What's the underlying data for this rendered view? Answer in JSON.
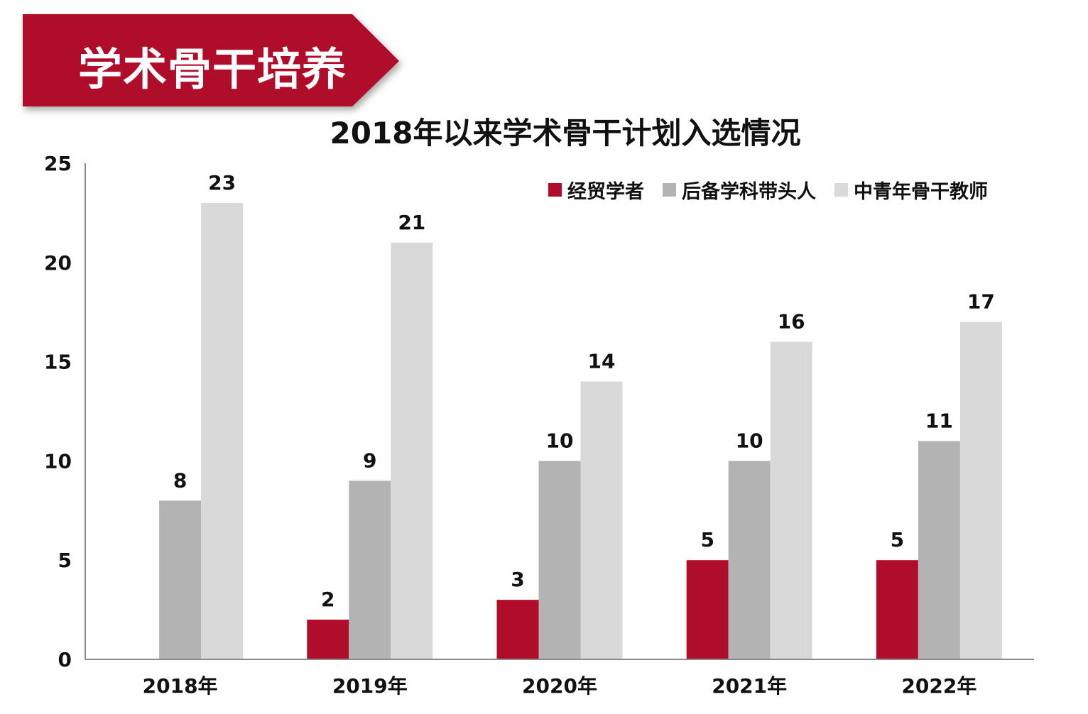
{
  "banner": {
    "title": "学术骨干培养",
    "color": "#b00d2a"
  },
  "chart_data": {
    "type": "bar",
    "title": "2018年以来学术骨干计划入选情况",
    "categories": [
      "2018年",
      "2019年",
      "2020年",
      "2021年",
      "2022年"
    ],
    "series": [
      {
        "name": "经贸学者",
        "color": "#b00d2a",
        "values": [
          0,
          2,
          3,
          5,
          5
        ],
        "labels": [
          "",
          "2",
          "3",
          "5",
          "5"
        ]
      },
      {
        "name": "后备学科带头人",
        "color": "#b3b3b3",
        "values": [
          8,
          9,
          10,
          10,
          11
        ],
        "labels": [
          "8",
          "9",
          "10",
          "10",
          "11"
        ]
      },
      {
        "name": "中青年骨干教师",
        "color": "#d9d9d9",
        "values": [
          23,
          21,
          14,
          16,
          17
        ],
        "labels": [
          "23",
          "21",
          "14",
          "16",
          "17"
        ]
      }
    ],
    "ylim": [
      0,
      25
    ],
    "yticks": [
      "0",
      "5",
      "10",
      "15",
      "20",
      "25"
    ],
    "xlabel": "",
    "ylabel": "",
    "grid": false,
    "legend": "top-right"
  }
}
